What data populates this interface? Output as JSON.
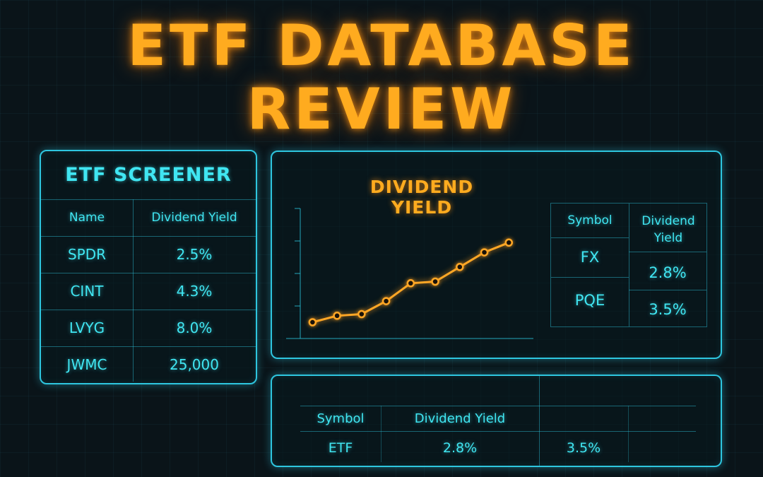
{
  "title_line1": "ETF DATABASE",
  "title_line2": "REVIEW",
  "screener": {
    "title": "ETF SCREENER",
    "headers": [
      "Name",
      "Dividend Yield"
    ],
    "rows": [
      [
        "SPDR",
        "2.5%"
      ],
      [
        "CINT",
        "4.3%"
      ],
      [
        "LVYG",
        "8.0%"
      ],
      [
        "JWMC",
        "25,000"
      ]
    ]
  },
  "chart_panel": {
    "title": "DIVIDEND YIELD",
    "chart_data": {
      "type": "line",
      "title": "DIVIDEND YIELD",
      "xlabel": "",
      "ylabel": "",
      "x": [
        1,
        2,
        3,
        4,
        5,
        6,
        7,
        8,
        9
      ],
      "series": [
        {
          "values": [
            1.0,
            1.4,
            1.5,
            2.3,
            3.4,
            3.5,
            4.4,
            5.3,
            5.9
          ]
        }
      ],
      "xlim": [
        0.5,
        10.0
      ],
      "ylim": [
        0,
        8
      ],
      "line_color": "#ffa726",
      "grid": false
    },
    "table": {
      "headers": [
        "Symbol",
        "Dividend Yield"
      ],
      "col1": [
        "FX",
        "PQE"
      ],
      "col2": [
        "2.8%",
        "3.5%"
      ]
    }
  },
  "bottom_table": {
    "headers": [
      "Symbol",
      "Dividend Yield"
    ],
    "row": [
      "ETF",
      "2.8%",
      "3.5%"
    ]
  },
  "colors": {
    "accent": "#ffab1f",
    "cyan": "#40e6f2",
    "border": "#2ec6df"
  }
}
